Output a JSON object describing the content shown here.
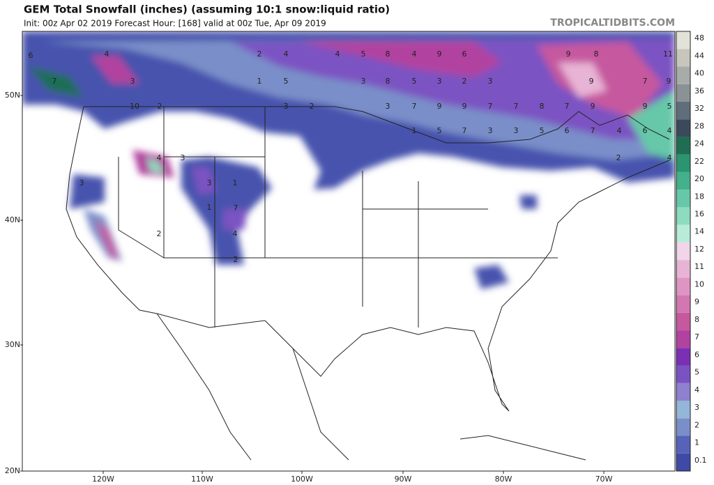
{
  "title": "GEM Total Snowfall (inches) (assuming 10:1 snow:liquid ratio)",
  "subtitle": "Init: 00z Apr 02 2019   Forecast Hour: [168]   valid at 00z Tue, Apr 09 2019",
  "credit": "TROPICALTIDBITS.COM",
  "lat_labels": [
    "50N",
    "40N",
    "30N",
    "20N"
  ],
  "lon_labels": [
    "120W",
    "110W",
    "100W",
    "90W",
    "80W",
    "70W"
  ],
  "colorbar": {
    "levels": [
      0.1,
      1,
      2,
      3,
      4,
      5,
      6,
      7,
      8,
      9,
      10,
      11,
      12,
      14,
      16,
      18,
      20,
      22,
      24,
      28,
      32,
      36,
      40,
      44,
      48
    ],
    "colors": [
      "#3e4aa6",
      "#5663b8",
      "#7a8fc9",
      "#94b6d8",
      "#8f80d0",
      "#7b52c2",
      "#7a2fb5",
      "#b2429f",
      "#c6589f",
      "#d277b2",
      "#de95c4",
      "#e8b4d6",
      "#f2d5e8",
      "#b8ecd8",
      "#8ddcc0",
      "#66c8a8",
      "#44b08c",
      "#2b9470",
      "#1f6e54",
      "#3a4a5a",
      "#5f6e7a",
      "#8a9296",
      "#a8aca8",
      "#c6c6bc",
      "#e2e2d8"
    ]
  },
  "map_labels": [
    6,
    7,
    4,
    3,
    10,
    2,
    4,
    3,
    3,
    1,
    1,
    7,
    4,
    2,
    3,
    2,
    2,
    4,
    1,
    5,
    3,
    2,
    4,
    5,
    8,
    4,
    9,
    6,
    9,
    8,
    11,
    3,
    8,
    5,
    3,
    2,
    3,
    9,
    7,
    9,
    3,
    7,
    9,
    9,
    7,
    7,
    8,
    7,
    9,
    9,
    5,
    1,
    5,
    7,
    3,
    3,
    5,
    6,
    7,
    4,
    6,
    4,
    2,
    4
  ]
}
